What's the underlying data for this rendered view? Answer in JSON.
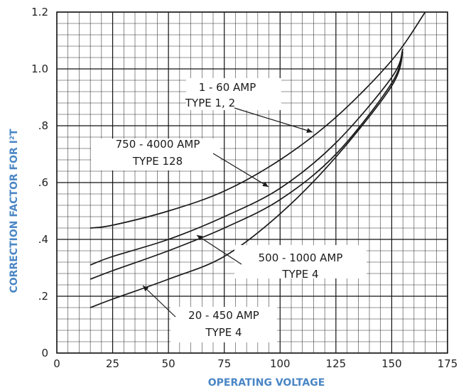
{
  "chart_data": {
    "type": "line",
    "title": "",
    "xlabel": "OPERATING VOLTAGE",
    "ylabel": "CORRECTION FACTOR FOR I²T",
    "xlim": [
      0,
      175
    ],
    "ylim": [
      0,
      1.2
    ],
    "grid": true,
    "x_ticks": [
      0,
      25,
      50,
      75,
      100,
      125,
      150,
      175
    ],
    "x_tick_labels": [
      "0",
      "25",
      "50",
      "75",
      "100",
      "125",
      "150",
      "175"
    ],
    "y_ticks": [
      0,
      0.2,
      0.4,
      0.6,
      0.8,
      1.0,
      1.2
    ],
    "y_tick_labels": [
      "0",
      ".2",
      ".4",
      ".6",
      ".8",
      "1.0",
      "1.2"
    ],
    "series": [
      {
        "name": "1 - 60 AMP TYPE 1, 2",
        "label_lines": [
          "1 - 60 AMP",
          "TYPE 1, 2"
        ],
        "x": [
          15,
          25,
          50,
          75,
          100,
          125,
          150,
          165
        ],
        "values": [
          0.44,
          0.45,
          0.5,
          0.57,
          0.68,
          0.83,
          1.03,
          1.2
        ]
      },
      {
        "name": "750 - 4000 AMP TYPE 128",
        "label_lines": [
          "750 - 4000 AMP",
          "TYPE 128"
        ],
        "x": [
          15,
          25,
          50,
          75,
          100,
          125,
          150,
          155
        ],
        "values": [
          0.31,
          0.34,
          0.4,
          0.48,
          0.58,
          0.74,
          0.97,
          1.07
        ]
      },
      {
        "name": "500 - 1000 AMP TYPE 4",
        "label_lines": [
          "500 - 1000 AMP",
          "TYPE 4"
        ],
        "x": [
          15,
          25,
          50,
          75,
          100,
          125,
          150,
          155
        ],
        "values": [
          0.26,
          0.29,
          0.36,
          0.44,
          0.54,
          0.7,
          0.95,
          1.07
        ]
      },
      {
        "name": "20 - 450 AMP TYPE 4",
        "label_lines": [
          "20 - 450 AMP",
          "TYPE 4"
        ],
        "x": [
          15,
          25,
          50,
          75,
          100,
          125,
          150,
          155
        ],
        "values": [
          0.16,
          0.19,
          0.26,
          0.34,
          0.49,
          0.69,
          0.94,
          1.06
        ]
      }
    ],
    "line_color": "#1a1a1a",
    "axis_title_color": "#4a86c5"
  }
}
